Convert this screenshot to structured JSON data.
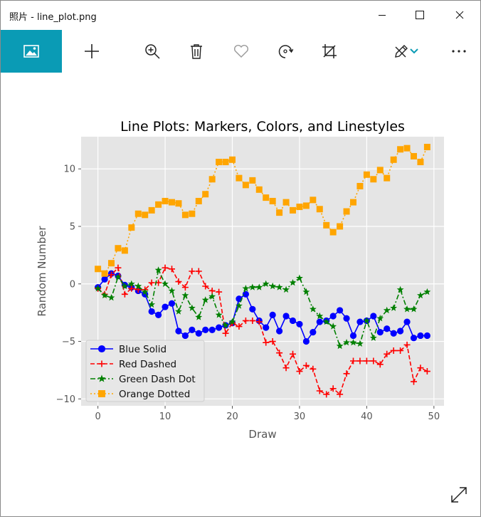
{
  "window": {
    "title": "照片 - line_plot.png"
  },
  "toolbar": {
    "icons": [
      "home-image-icon",
      "add-icon",
      "zoom-in-icon",
      "delete-icon",
      "favorite-heart-icon",
      "rotate-icon",
      "crop-icon",
      "edit-draw-icon",
      "chevron-down-icon",
      "more-icon"
    ]
  },
  "colors": {
    "accent": "#0a9bb5",
    "plot_bg": "#e5e5e5",
    "blue": "#0000ff",
    "red": "#ff0000",
    "green": "#008000",
    "orange": "#ffa500"
  },
  "chart_data": {
    "type": "line",
    "title": "Line Plots: Markers, Colors, and Linestyles",
    "xlabel": "Draw",
    "ylabel": "Random Number",
    "xlim": [
      -2.5,
      51.5
    ],
    "ylim": [
      -10.6,
      12.8
    ],
    "xticks": [
      0,
      10,
      20,
      30,
      40,
      50
    ],
    "yticks": [
      -10,
      -5,
      0,
      5,
      10
    ],
    "grid": true,
    "legend_position": "lower-left",
    "x": [
      0,
      1,
      2,
      3,
      4,
      5,
      6,
      7,
      8,
      9,
      10,
      11,
      12,
      13,
      14,
      15,
      16,
      17,
      18,
      19,
      20,
      21,
      22,
      23,
      24,
      25,
      26,
      27,
      28,
      29,
      30,
      31,
      32,
      33,
      34,
      35,
      36,
      37,
      38,
      39,
      40,
      41,
      42,
      43,
      44,
      45,
      46,
      47,
      48,
      49
    ],
    "series": [
      {
        "name": "Blue Solid",
        "color": "#0000ff",
        "dash": "",
        "marker": "circle",
        "values": [
          -0.3,
          0.4,
          0.9,
          0.7,
          -0.1,
          -0.3,
          -0.6,
          -0.9,
          -2.4,
          -2.7,
          -2.0,
          -1.7,
          -4.1,
          -4.5,
          -4.0,
          -4.3,
          -4.0,
          -4.0,
          -3.8,
          -3.6,
          -3.4,
          -1.3,
          -0.9,
          -2.2,
          -3.2,
          -3.8,
          -2.7,
          -4.1,
          -2.8,
          -3.2,
          -3.5,
          -5.0,
          -4.2,
          -3.3,
          -3.2,
          -2.8,
          -2.3,
          -3.0,
          -4.5,
          -3.3,
          -3.2,
          -2.8,
          -4.2,
          -3.9,
          -4.3,
          -4.1,
          -3.3,
          -4.7,
          -4.5,
          -4.5
        ]
      },
      {
        "name": "Red Dashed",
        "color": "#ff0000",
        "dash": "6,3",
        "marker": "plus",
        "values": [
          -0.4,
          -0.9,
          0.8,
          1.4,
          -0.9,
          -0.4,
          -0.5,
          -0.5,
          0.1,
          0.1,
          1.4,
          1.3,
          0.2,
          -0.3,
          1.1,
          1.1,
          -0.2,
          -0.6,
          -0.7,
          -4.3,
          -3.4,
          -3.7,
          -3.2,
          -3.2,
          -3.3,
          -5.1,
          -5.0,
          -6.0,
          -7.3,
          -6.1,
          -7.6,
          -7.1,
          -7.4,
          -9.3,
          -9.6,
          -9.1,
          -9.6,
          -7.8,
          -6.7,
          -6.7,
          -6.7,
          -6.7,
          -7.0,
          -6.1,
          -5.8,
          -5.8,
          -5.3,
          -8.5,
          -7.3,
          -7.6
        ]
      },
      {
        "name": "Green Dash Dot",
        "color": "#008000",
        "dash": "7,3,2,3",
        "marker": "star",
        "values": [
          -0.4,
          -1.0,
          -1.2,
          0.6,
          -0.2,
          0.0,
          -0.2,
          -0.7,
          -1.8,
          1.2,
          0.0,
          -0.6,
          -2.4,
          -1.0,
          -2.1,
          -2.9,
          -1.4,
          -1.1,
          -2.7,
          -3.6,
          -3.3,
          -1.9,
          -0.4,
          -0.3,
          -0.3,
          0.0,
          -0.2,
          -0.3,
          -0.5,
          0.1,
          0.5,
          -0.7,
          -2.2,
          -2.8,
          -3.3,
          -3.7,
          -5.4,
          -5.1,
          -5.1,
          -5.2,
          -3.2,
          -4.7,
          -3.0,
          -2.3,
          -2.1,
          -0.5,
          -2.2,
          -2.2,
          -1.0,
          -0.7
        ]
      },
      {
        "name": "Orange Dotted",
        "color": "#ffa500",
        "dash": "2,3",
        "marker": "square",
        "values": [
          1.3,
          0.9,
          1.8,
          3.1,
          2.9,
          4.9,
          6.1,
          6.0,
          6.4,
          6.9,
          7.2,
          7.1,
          7.0,
          6.0,
          6.1,
          7.2,
          7.8,
          9.1,
          10.6,
          10.6,
          10.8,
          9.2,
          8.6,
          9.0,
          8.2,
          7.5,
          7.2,
          6.2,
          7.1,
          6.4,
          6.7,
          6.8,
          7.3,
          6.5,
          5.1,
          4.5,
          5.0,
          6.3,
          7.1,
          8.5,
          9.5,
          9.1,
          9.9,
          9.2,
          10.8,
          11.7,
          11.8,
          11.1,
          10.6,
          11.9
        ]
      }
    ]
  }
}
